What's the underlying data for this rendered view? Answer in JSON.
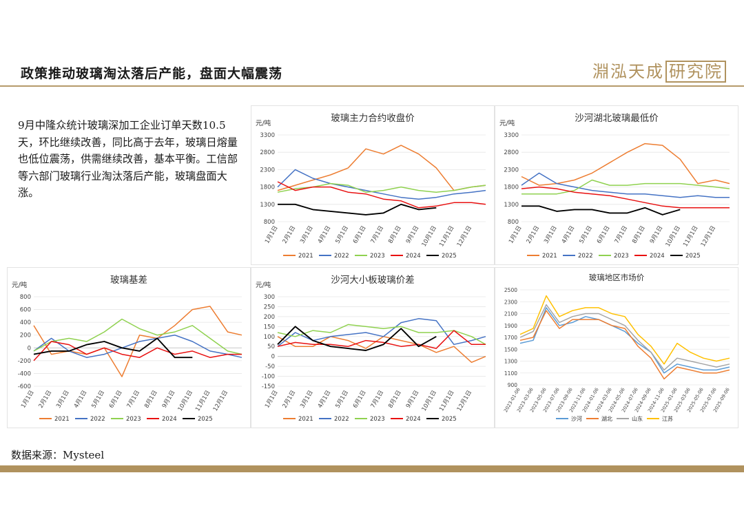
{
  "header": {
    "title": "政策推动玻璃淘汰落后产能，盘面大幅震荡",
    "logo_text": "淵泓天成",
    "logo_box": "研究院"
  },
  "summary": "9月中隆众统计玻璃深加工企业订单天数10.5天，环比继续改善，同比高于去年，玻璃日熔量也低位震荡，供需继续改善，基本平衡。工信部等六部门玻璃行业淘汰落后产能，玻璃盘面大涨。",
  "footer": {
    "source": "数据来源：Mysteel"
  },
  "colors": {
    "accent": "#b0925e",
    "s2021": "#ed7d31",
    "s2022": "#4472c4",
    "s2023": "#8fd14f",
    "s2024": "#e81010",
    "s2025": "#000000",
    "shahe": "#5b9bd5",
    "hubei": "#ed7d31",
    "shandong": "#a5a5a5",
    "jiangsu": "#ffc000"
  },
  "chart_data": [
    {
      "type": "line",
      "title": "玻璃主力合约收盘价",
      "unit": "元/吨",
      "ylim": [
        800,
        3300
      ],
      "yticks": [
        800,
        1300,
        1800,
        2300,
        2800,
        3300
      ],
      "xlabels": [
        "1月1日",
        "2月1日",
        "3月1日",
        "4月1日",
        "5月1日",
        "6月1日",
        "7月1日",
        "8月1日",
        "9月1日",
        "10月1日",
        "11月1日",
        "12月1日"
      ],
      "x": [
        0,
        1,
        2,
        3,
        4,
        5,
        6,
        7,
        8,
        9,
        10,
        11,
        11.8
      ],
      "legend": [
        "2021",
        "2022",
        "2023",
        "2024",
        "2025"
      ],
      "series": [
        {
          "name": "2021",
          "values": [
            1700,
            1850,
            2000,
            2150,
            2350,
            2900,
            2750,
            3000,
            2750,
            2350,
            1700,
            1800,
            1850
          ]
        },
        {
          "name": "2022",
          "values": [
            1800,
            2300,
            2050,
            1900,
            1800,
            1700,
            1600,
            1500,
            1450,
            1500,
            1600,
            1650,
            1700
          ]
        },
        {
          "name": "2023",
          "values": [
            1650,
            1750,
            1800,
            1900,
            1850,
            1650,
            1700,
            1800,
            1700,
            1650,
            1700,
            1800,
            1850
          ]
        },
        {
          "name": "2024",
          "values": [
            1950,
            1700,
            1800,
            1800,
            1650,
            1600,
            1450,
            1400,
            1200,
            1250,
            1350,
            1350,
            1300
          ]
        },
        {
          "name": "2025",
          "values": [
            1300,
            1300,
            1150,
            1100,
            1050,
            1000,
            1050,
            1300,
            1150,
            1200,
            null,
            null,
            null
          ]
        }
      ]
    },
    {
      "type": "line",
      "title": "沙河湖北玻璃最低价",
      "unit": "元/吨",
      "ylim": [
        800,
        3300
      ],
      "yticks": [
        800,
        1300,
        1800,
        2300,
        2800,
        3300
      ],
      "xlabels": [
        "1月1日",
        "2月1日",
        "3月1日",
        "4月1日",
        "5月1日",
        "6月1日",
        "7月1日",
        "8月1日",
        "9月1日",
        "10月1日",
        "11月1日",
        "12月1日"
      ],
      "x": [
        0,
        1,
        2,
        3,
        4,
        5,
        6,
        7,
        8,
        9,
        10,
        11,
        11.8
      ],
      "legend": [
        "2021",
        "2022",
        "2023",
        "2024",
        "2025"
      ],
      "series": [
        {
          "name": "2021",
          "values": [
            2100,
            1850,
            1900,
            2000,
            2200,
            2500,
            2800,
            3050,
            3000,
            2600,
            1900,
            2000,
            1900
          ]
        },
        {
          "name": "2022",
          "values": [
            1850,
            2200,
            1900,
            1800,
            1700,
            1650,
            1600,
            1600,
            1550,
            1500,
            1550,
            1500,
            1500
          ]
        },
        {
          "name": "2023",
          "values": [
            1600,
            1600,
            1600,
            1700,
            2000,
            1850,
            1850,
            1900,
            1900,
            1900,
            1850,
            1800,
            1750
          ]
        },
        {
          "name": "2024",
          "values": [
            1750,
            1800,
            1750,
            1650,
            1600,
            1550,
            1450,
            1350,
            1250,
            1200,
            1200,
            1200,
            1200
          ]
        },
        {
          "name": "2025",
          "values": [
            1250,
            1250,
            1100,
            1150,
            1150,
            1050,
            1050,
            1200,
            1000,
            1150,
            null,
            null,
            null
          ]
        }
      ]
    },
    {
      "type": "line",
      "title": "玻璃基差",
      "unit": "元/吨",
      "ylim": [
        -600,
        800
      ],
      "yticks": [
        -600,
        -400,
        -200,
        0,
        200,
        400,
        600,
        800
      ],
      "xlabels": [
        "1月1日",
        "2月1日",
        "3月1日",
        "4月1日",
        "5月1日",
        "6月1日",
        "7月1日",
        "8月1日",
        "9月1日",
        "10月1日",
        "11月1日",
        "12月1日"
      ],
      "x": [
        0,
        1,
        2,
        3,
        4,
        5,
        6,
        7,
        8,
        9,
        10,
        11,
        11.8
      ],
      "legend": [
        "2021",
        "2022",
        "2023",
        "2024",
        "2025"
      ],
      "series": [
        {
          "name": "2021",
          "values": [
            350,
            -100,
            -50,
            -100,
            0,
            -450,
            200,
            150,
            350,
            600,
            650,
            250,
            200
          ]
        },
        {
          "name": "2022",
          "values": [
            -50,
            150,
            -50,
            -150,
            -100,
            0,
            100,
            150,
            200,
            100,
            -50,
            -100,
            -150
          ]
        },
        {
          "name": "2023",
          "values": [
            -50,
            100,
            150,
            100,
            250,
            450,
            300,
            200,
            250,
            350,
            150,
            -50,
            -100
          ]
        },
        {
          "name": "2024",
          "values": [
            -200,
            100,
            50,
            -100,
            0,
            -100,
            -150,
            0,
            -100,
            -50,
            -150,
            -100,
            -100
          ]
        },
        {
          "name": "2025",
          "values": [
            -100,
            -50,
            -50,
            50,
            100,
            0,
            -50,
            150,
            -150,
            -150,
            null,
            null,
            null
          ]
        }
      ]
    },
    {
      "type": "line",
      "title": "沙河大小板玻璃价差",
      "unit": "元/吨",
      "ylim": [
        -150,
        300
      ],
      "yticks": [
        -150,
        -100,
        -50,
        0,
        50,
        100,
        150,
        200,
        250,
        300
      ],
      "xlabels": [
        "1月1日",
        "2月1日",
        "3月1日",
        "4月1日",
        "5月1日",
        "6月1日",
        "7月1日",
        "8月1日",
        "9月1日",
        "10月1日",
        "11月1日",
        "12月1日"
      ],
      "x": [
        0,
        1,
        2,
        3,
        4,
        5,
        6,
        7,
        8,
        9,
        10,
        11,
        11.8
      ],
      "legend": [
        "2021",
        "2022",
        "2023",
        "2024",
        "2025"
      ],
      "series": [
        {
          "name": "2021",
          "values": [
            100,
            50,
            50,
            100,
            80,
            40,
            100,
            80,
            60,
            20,
            50,
            -30,
            0
          ]
        },
        {
          "name": "2022",
          "values": [
            50,
            120,
            80,
            100,
            110,
            120,
            100,
            170,
            190,
            180,
            60,
            80,
            100
          ]
        },
        {
          "name": "2023",
          "values": [
            120,
            100,
            130,
            120,
            160,
            150,
            140,
            150,
            120,
            120,
            130,
            100,
            60
          ]
        },
        {
          "name": "2024",
          "values": [
            50,
            70,
            60,
            60,
            50,
            80,
            70,
            50,
            60,
            40,
            130,
            60,
            60
          ]
        },
        {
          "name": "2025",
          "values": [
            60,
            150,
            80,
            50,
            40,
            30,
            60,
            140,
            50,
            100,
            null,
            null,
            null
          ]
        }
      ]
    },
    {
      "type": "line",
      "title": "玻璃地区市场价",
      "ylim": [
        900,
        2500
      ],
      "yticks": [
        900,
        1100,
        1300,
        1500,
        1700,
        1900,
        2100,
        2300,
        2500
      ],
      "xlabels": [
        "2023-01-06",
        "2023-03-06",
        "2023-05-06",
        "2023-07-06",
        "2023-09-06",
        "2023-11-06",
        "2024-01-06",
        "2024-03-06",
        "2024-05-06",
        "2024-07-06",
        "2024-09-06",
        "2024-11-06",
        "2025-01-06",
        "2025-03-06",
        "2025-05-06",
        "2025-07-06",
        "2025-09-06"
      ],
      "x": [
        0,
        1,
        2,
        3,
        4,
        5,
        6,
        7,
        8,
        9,
        10,
        11,
        12,
        13,
        14,
        15,
        16
      ],
      "legend": [
        "沙河",
        "湖北",
        "山东",
        "江苏"
      ],
      "series": [
        {
          "name": "沙河",
          "values": [
            1600,
            1650,
            2200,
            1900,
            1950,
            2050,
            2000,
            1900,
            1800,
            1600,
            1450,
            1100,
            1250,
            1200,
            1150,
            1150,
            1200
          ]
        },
        {
          "name": "湖北",
          "values": [
            1650,
            1700,
            2150,
            1850,
            2000,
            2000,
            2000,
            1900,
            1850,
            1550,
            1350,
            1000,
            1200,
            1150,
            1100,
            1100,
            1150
          ]
        },
        {
          "name": "山东",
          "values": [
            1700,
            1800,
            2250,
            1950,
            2050,
            2100,
            2100,
            2000,
            1900,
            1650,
            1450,
            1150,
            1350,
            1300,
            1250,
            1200,
            1250
          ]
        },
        {
          "name": "江苏",
          "values": [
            1750,
            1850,
            2400,
            2050,
            2150,
            2200,
            2200,
            2100,
            2050,
            1750,
            1550,
            1250,
            1600,
            1450,
            1350,
            1300,
            1350
          ]
        }
      ]
    }
  ]
}
